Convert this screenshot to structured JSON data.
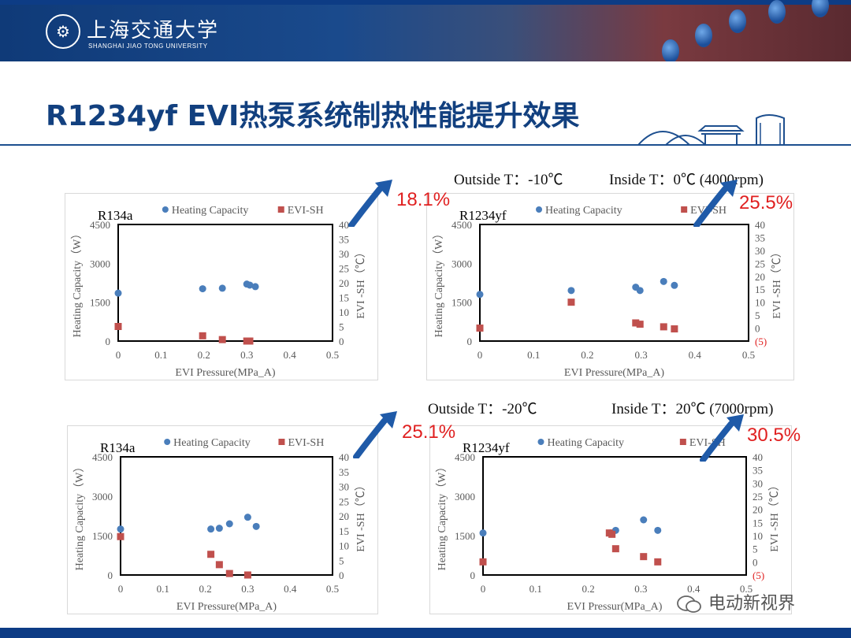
{
  "header": {
    "university_cn": "上海交通大学",
    "university_en": "SHANGHAI JIAO TONG UNIVERSITY",
    "brand_color": "#0d3c85"
  },
  "slide": {
    "title": "R1234yf EVI热泵系统制热性能提升效果"
  },
  "conditions": {
    "top": {
      "outside": "Outside T：-10℃",
      "inside": "Inside T：0℃ (4000rpm)"
    },
    "bottom": {
      "outside": "Outside T：-20℃",
      "inside": "Inside T：20℃ (7000rpm)"
    }
  },
  "improvements": [
    "18.1%",
    "25.5%",
    "25.1%",
    "30.5%"
  ],
  "watermark": "电动新视界",
  "chart_data": [
    {
      "type": "scatter",
      "label": "R134a",
      "xlabel": "EVI Pressure(MPa_A)",
      "ylabel": "Heating Capacity（W）",
      "y2label": "EVI -SH（℃）",
      "xlim": [
        0,
        0.5
      ],
      "ylim": [
        0,
        4500
      ],
      "y2lim": [
        0,
        40
      ],
      "xticks": [
        "0",
        "0.1",
        "0.2",
        "0.3",
        "0.4",
        "0.5"
      ],
      "yticks": [
        "0",
        "1500",
        "3000",
        "4500"
      ],
      "y2ticks": [
        "0",
        "5",
        "10",
        "15",
        "20",
        "25",
        "30",
        "35",
        "40"
      ],
      "legend": "top",
      "series": [
        {
          "name": "Heating Capacity",
          "color": "#4a7ebb",
          "marker": "circle",
          "axis": "left",
          "x": [
            0,
            0.197,
            0.243,
            0.3,
            0.307,
            0.32
          ],
          "y": [
            1850,
            2020,
            2040,
            2200,
            2160,
            2100
          ]
        },
        {
          "name": "EVI-SH",
          "color": "#c0504d",
          "marker": "square",
          "axis": "right",
          "x": [
            0,
            0.197,
            0.243,
            0.3,
            0.307
          ],
          "y": [
            5,
            1.8,
            0.5,
            0,
            0
          ]
        }
      ]
    },
    {
      "type": "scatter",
      "label": "R1234yf",
      "xlabel": "EVI Pressure(MPa_A)",
      "ylabel": "Heating Capacity（W）",
      "y2label": "EVI -SH（℃）",
      "xlim": [
        0,
        0.5
      ],
      "ylim": [
        0,
        4500
      ],
      "y2lim": [
        -5,
        40
      ],
      "xticks": [
        "0",
        "0.1",
        "0.2",
        "0.3",
        "0.4",
        "0.5"
      ],
      "yticks": [
        "0",
        "1500",
        "3000",
        "4500"
      ],
      "y2ticks": [
        "(5)",
        "0",
        "5",
        "10",
        "15",
        "20",
        "25",
        "30",
        "35",
        "40"
      ],
      "legend": "top",
      "series": [
        {
          "name": "Heating Capacity",
          "color": "#4a7ebb",
          "marker": "circle",
          "axis": "left",
          "x": [
            0,
            0.17,
            0.29,
            0.298,
            0.342,
            0.362
          ],
          "y": [
            1800,
            1950,
            2080,
            1950,
            2300,
            2150
          ]
        },
        {
          "name": "EVI-SH",
          "color": "#c0504d",
          "marker": "square",
          "axis": "right",
          "x": [
            0,
            0.17,
            0.29,
            0.298,
            0.342,
            0.362
          ],
          "y": [
            0,
            10,
            2,
            1.5,
            0.5,
            -0.3
          ]
        }
      ]
    },
    {
      "type": "scatter",
      "label": "R134a",
      "xlabel": "EVI Pressure(MPa_A)",
      "ylabel": "Heating Capacity（W）",
      "y2label": "EVI -SH（℃）",
      "xlim": [
        0,
        0.5
      ],
      "ylim": [
        0,
        4500
      ],
      "y2lim": [
        0,
        40
      ],
      "xticks": [
        "0",
        "0.1",
        "0.2",
        "0.3",
        "0.4",
        "0.5"
      ],
      "yticks": [
        "0",
        "1500",
        "3000",
        "4500"
      ],
      "y2ticks": [
        "0",
        "5",
        "10",
        "15",
        "20",
        "25",
        "30",
        "35",
        "40"
      ],
      "legend": "top",
      "series": [
        {
          "name": "Heating Capacity",
          "color": "#4a7ebb",
          "marker": "circle",
          "axis": "left",
          "x": [
            0,
            0.213,
            0.233,
            0.257,
            0.3,
            0.32
          ],
          "y": [
            1750,
            1750,
            1780,
            1950,
            2200,
            1850
          ]
        },
        {
          "name": "EVI-SH",
          "color": "#c0504d",
          "marker": "square",
          "axis": "right",
          "x": [
            0,
            0.213,
            0.233,
            0.257,
            0.3
          ],
          "y": [
            13,
            7,
            3.5,
            0.5,
            0
          ]
        }
      ]
    },
    {
      "type": "scatter",
      "label": "R1234yf",
      "xlabel": "EVI Pressur(MPa_A)",
      "ylabel": "Heating Capacity（W）",
      "y2label": "EVI -SH（℃）",
      "xlim": [
        0,
        0.5
      ],
      "ylim": [
        0,
        4500
      ],
      "y2lim": [
        -5,
        40
      ],
      "xticks": [
        "0",
        "0.1",
        "0.2",
        "0.3",
        "0.4",
        "0.5"
      ],
      "yticks": [
        "0",
        "1500",
        "3000",
        "4500"
      ],
      "y2ticks": [
        "(5)",
        "0",
        "5",
        "10",
        "15",
        "20",
        "25",
        "30",
        "35",
        "40"
      ],
      "legend": "top",
      "series": [
        {
          "name": "Heating Capacity",
          "color": "#4a7ebb",
          "marker": "circle",
          "axis": "left",
          "x": [
            0,
            0.242,
            0.252,
            0.305,
            0.332
          ],
          "y": [
            1600,
            1600,
            1700,
            2100,
            1700
          ]
        },
        {
          "name": "EVI-SH",
          "color": "#c0504d",
          "marker": "square",
          "axis": "right",
          "x": [
            0,
            0.24,
            0.245,
            0.252,
            0.305,
            0.332
          ],
          "y": [
            0,
            11,
            10.5,
            5,
            2,
            0
          ]
        }
      ]
    }
  ]
}
